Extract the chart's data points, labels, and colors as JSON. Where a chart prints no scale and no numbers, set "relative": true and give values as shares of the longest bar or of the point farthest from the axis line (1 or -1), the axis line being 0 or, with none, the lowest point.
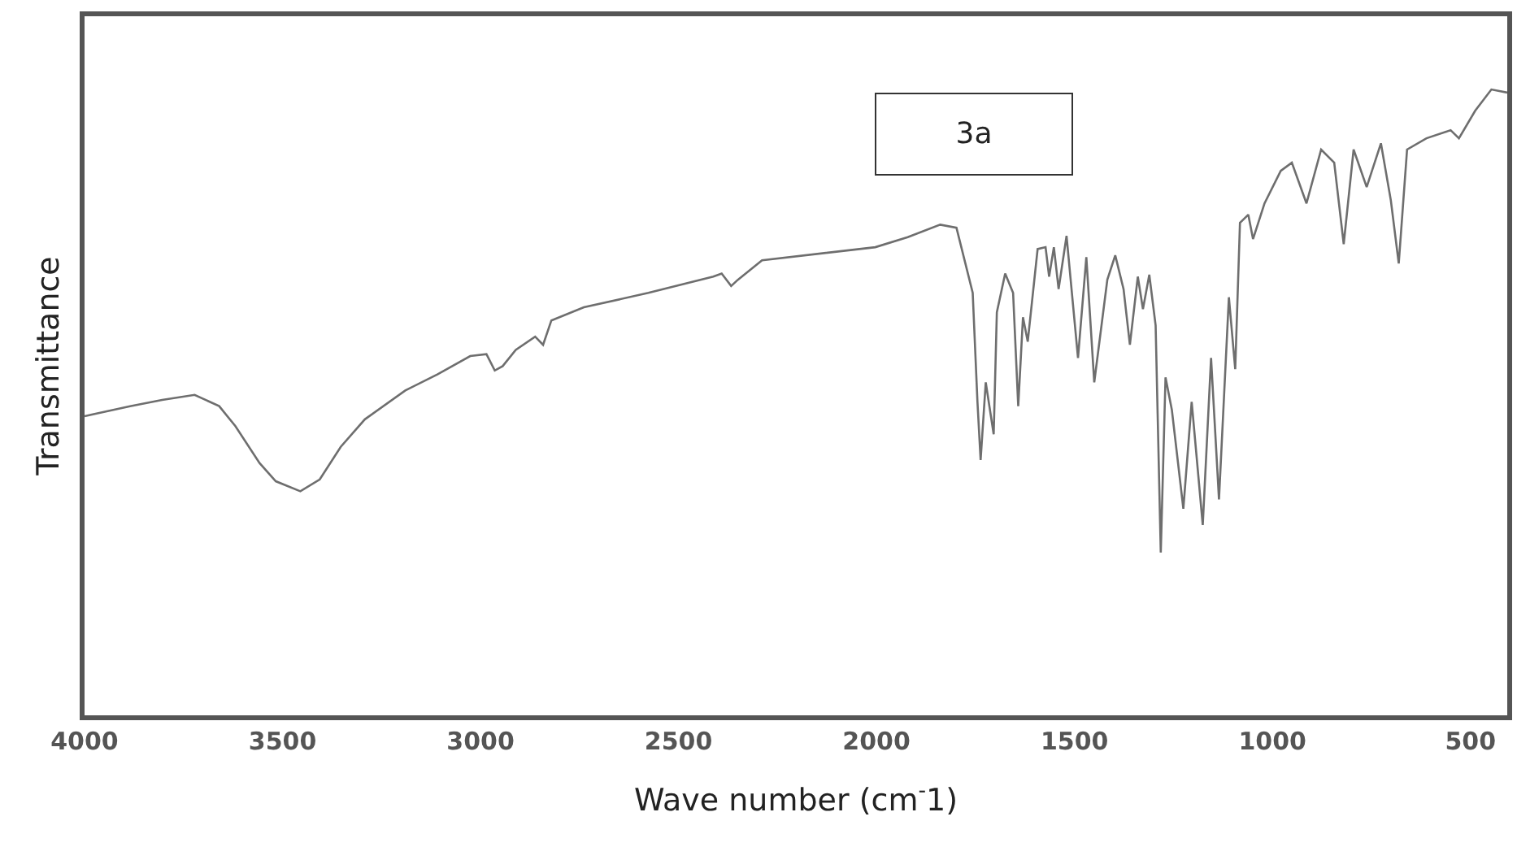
{
  "chart_data": {
    "type": "line",
    "relative": true,
    "xlabel": "Wave number (cm$^{-}$1)",
    "ylabel": "Transmittance",
    "annotations": [
      "3a"
    ],
    "xlim": [
      4000,
      407
    ],
    "xticks": [
      4000,
      3500,
      3000,
      2500,
      2000,
      1500,
      1000,
      500
    ],
    "marker": "none",
    "line_style": "solid",
    "series": [
      {
        "color": "#6e6e6e",
        "x": [
          4000,
          3885,
          3804,
          3722,
          3660,
          3619,
          3558,
          3517,
          3455,
          3406,
          3353,
          3292,
          3190,
          3108,
          3026,
          2985,
          2964,
          2944,
          2911,
          2862,
          2842,
          2821,
          2739,
          2576,
          2412,
          2391,
          2367,
          2350,
          2289,
          2003,
          1921,
          1839,
          1798,
          1757,
          1745,
          1737,
          1724,
          1704,
          1696,
          1675,
          1655,
          1642,
          1630,
          1618,
          1593,
          1573,
          1564,
          1552,
          1540,
          1520,
          1491,
          1470,
          1450,
          1417,
          1397,
          1376,
          1360,
          1340,
          1327,
          1311,
          1295,
          1282,
          1270,
          1254,
          1225,
          1204,
          1176,
          1155,
          1135,
          1110,
          1094,
          1082,
          1061,
          1049,
          1020,
          979,
          951,
          914,
          877,
          844,
          820,
          795,
          762,
          726,
          701,
          681,
          660,
          611,
          550,
          529,
          488,
          447,
          407
        ],
        "values": [
          0.478,
          0.494,
          0.504,
          0.512,
          0.494,
          0.462,
          0.403,
          0.374,
          0.358,
          0.377,
          0.429,
          0.473,
          0.519,
          0.545,
          0.574,
          0.577,
          0.551,
          0.558,
          0.584,
          0.605,
          0.592,
          0.631,
          0.652,
          0.675,
          0.701,
          0.706,
          0.686,
          0.696,
          0.727,
          0.748,
          0.764,
          0.784,
          0.779,
          0.675,
          0.501,
          0.408,
          0.532,
          0.449,
          0.644,
          0.706,
          0.675,
          0.494,
          0.636,
          0.597,
          0.745,
          0.748,
          0.701,
          0.748,
          0.681,
          0.766,
          0.571,
          0.732,
          0.532,
          0.696,
          0.735,
          0.681,
          0.592,
          0.701,
          0.649,
          0.704,
          0.623,
          0.26,
          0.54,
          0.488,
          0.33,
          0.501,
          0.304,
          0.571,
          0.345,
          0.668,
          0.553,
          0.787,
          0.8,
          0.761,
          0.818,
          0.87,
          0.883,
          0.818,
          0.904,
          0.883,
          0.753,
          0.904,
          0.844,
          0.914,
          0.823,
          0.722,
          0.904,
          0.922,
          0.935,
          0.922,
          0.966,
          1.0,
          0.995
        ]
      }
    ]
  }
}
